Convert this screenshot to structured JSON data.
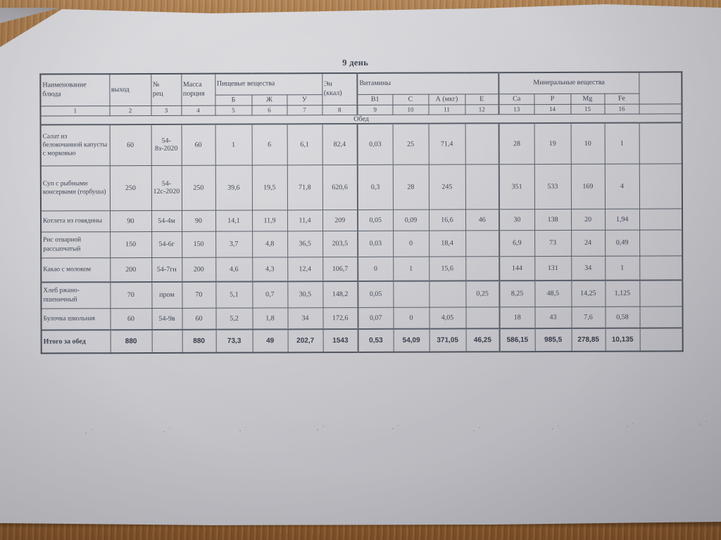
{
  "title": "9 день",
  "table": {
    "header": {
      "name": "Наименование\nблюда",
      "out": "выход",
      "rec": "№\nрец",
      "mass": "Масса\nпорция",
      "nutrients": "Пищевые вещества",
      "nutrient_cols": [
        "Б",
        "Ж",
        "У"
      ],
      "energy": "Эн\n(ккал)",
      "vitamins": "Витамины",
      "vitamin_cols": [
        "В1",
        "С",
        "А (мкг)",
        "Е"
      ],
      "minerals": "Минеральные вещества",
      "mineral_cols": [
        "Ca",
        "P",
        "Mg",
        "Fe"
      ],
      "numbers": [
        "1",
        "2",
        "3",
        "4",
        "5",
        "6",
        "7",
        "8",
        "9",
        "10",
        "11",
        "12",
        "13",
        "14",
        "15",
        "16",
        ""
      ]
    },
    "section": "Обед",
    "rows": [
      {
        "name": "Салат из белокочанной капусты с морковью",
        "cells": [
          "60",
          "54-8з-2020",
          "60",
          "1",
          "6",
          "6,1",
          "82,4",
          "0,03",
          "25",
          "71,4",
          "",
          "28",
          "19",
          "10",
          "1",
          ""
        ]
      },
      {
        "name": "Суп с рыбными консервами (горбуша)",
        "cells": [
          "250",
          "54-12с-2020",
          "250",
          "39,6",
          "19,5",
          "71,8",
          "620,6",
          "0,3",
          "28",
          "245",
          "",
          "351",
          "533",
          "169",
          "4",
          ""
        ]
      },
      {
        "name": "Котлета из говядины",
        "cells": [
          "90",
          "54-4м",
          "90",
          "14,1",
          "11,9",
          "11,4",
          "209",
          "0,05",
          "0,09",
          "16,6",
          "46",
          "30",
          "138",
          "20",
          "1,94",
          ""
        ]
      },
      {
        "name": "Рис отварной рассыпчатый",
        "cells": [
          "150",
          "54-6г",
          "150",
          "3,7",
          "4,8",
          "36,5",
          "203,5",
          "0,03",
          "0",
          "18,4",
          "",
          "6,9",
          "73",
          "24",
          "0,49",
          ""
        ]
      },
      {
        "name": "Какао с молоком",
        "cells": [
          "200",
          "54-7гн",
          "200",
          "4,6",
          "4,3",
          "12,4",
          "106,7",
          "0",
          "1",
          "15,6",
          "",
          "144",
          "131",
          "34",
          "1",
          ""
        ]
      },
      {
        "name": "Хлеб ржано-пшеничный",
        "cells": [
          "70",
          "пром",
          "70",
          "5,1",
          "0,7",
          "30,5",
          "148,2",
          "0,05",
          "",
          "",
          "0,25",
          "8,25",
          "48,5",
          "14,25",
          "1,125",
          ""
        ]
      },
      {
        "name": "Булочка школьная",
        "cells": [
          "60",
          "54-9в",
          "60",
          "5,2",
          "1,8",
          "34",
          "172,6",
          "0,07",
          "0",
          "4,05",
          "",
          "18",
          "43",
          "7,6",
          "0,58",
          ""
        ]
      },
      {
        "name": "Итого за обед",
        "bold": true,
        "cells": [
          "880",
          "",
          "880",
          "73,3",
          "49",
          "202,7",
          "1543",
          "0,53",
          "54,09",
          "371,05",
          "46,25",
          "586,15",
          "985,5",
          "278,85",
          "10,135",
          ""
        ]
      }
    ]
  },
  "decor": {
    "faint_mark": ", ʹ"
  },
  "colors": {
    "paper": "#c9c9ce",
    "wood_top": "#a97c4e",
    "wood_bottom": "#8c5d30",
    "ink": "#3d4250",
    "border": "#565b66"
  }
}
